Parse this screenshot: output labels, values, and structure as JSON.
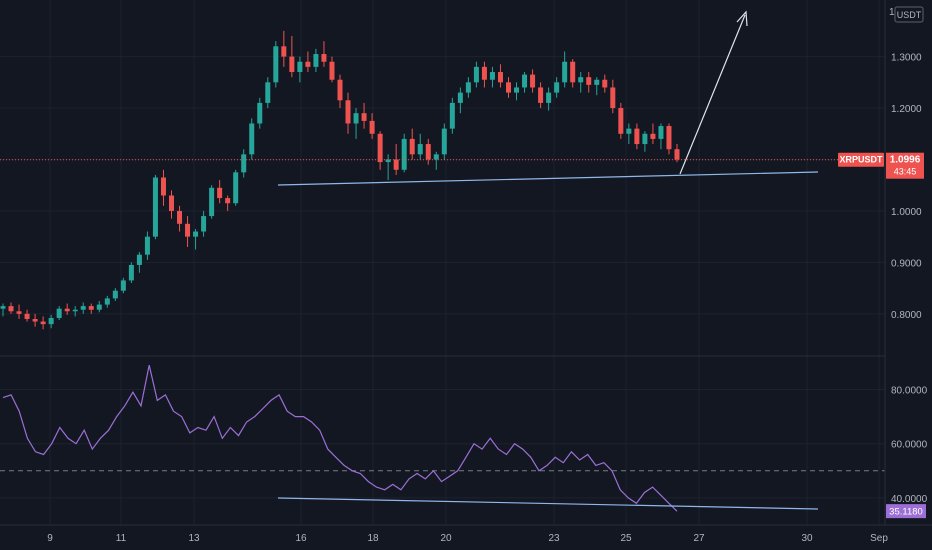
{
  "colors": {
    "background": "#131722",
    "grid": "#1e222d",
    "axis_text": "#b2b5be",
    "up": "#26a69a",
    "down": "#ef5350",
    "rsi": "#9c6fd6",
    "trendline": "#8fb8e8",
    "arrow": "#e0e3eb",
    "price_line": "#ef5350"
  },
  "price_axis": {
    "unit": "USDT",
    "ticks": [
      "1.3000",
      "1.2000",
      "1.0000",
      "0.9000",
      "0.8000"
    ],
    "top_label": "1"
  },
  "last_price": {
    "symbol": "XRPUSDT",
    "price": "1.0996",
    "countdown": "43:45",
    "value": 1.0996
  },
  "rsi_axis": {
    "ticks": [
      "80.0000",
      "60.0000",
      "40.0000"
    ],
    "level": 50,
    "current": "35.1180",
    "current_value": 35.118
  },
  "time_axis": {
    "labels": [
      "9",
      "11",
      "13",
      "16",
      "18",
      "20",
      "23",
      "25",
      "27",
      "30",
      "Sep"
    ]
  },
  "chart_data": [
    {
      "type": "candlestick",
      "series": "XRPUSDT",
      "ylim": [
        0.72,
        1.41
      ],
      "candles": [
        [
          0.81,
          0.82,
          0.795,
          0.815
        ],
        [
          0.815,
          0.822,
          0.8,
          0.805
        ],
        [
          0.805,
          0.818,
          0.79,
          0.8
        ],
        [
          0.8,
          0.808,
          0.785,
          0.79
        ],
        [
          0.79,
          0.8,
          0.775,
          0.785
        ],
        [
          0.785,
          0.795,
          0.77,
          0.78
        ],
        [
          0.78,
          0.798,
          0.772,
          0.792
        ],
        [
          0.792,
          0.815,
          0.788,
          0.81
        ],
        [
          0.81,
          0.82,
          0.798,
          0.805
        ],
        [
          0.805,
          0.815,
          0.795,
          0.808
        ],
        [
          0.808,
          0.822,
          0.8,
          0.815
        ],
        [
          0.815,
          0.82,
          0.8,
          0.808
        ],
        [
          0.808,
          0.825,
          0.803,
          0.818
        ],
        [
          0.818,
          0.835,
          0.812,
          0.83
        ],
        [
          0.83,
          0.85,
          0.825,
          0.845
        ],
        [
          0.845,
          0.87,
          0.84,
          0.865
        ],
        [
          0.865,
          0.9,
          0.86,
          0.895
        ],
        [
          0.895,
          0.92,
          0.88,
          0.915
        ],
        [
          0.915,
          0.96,
          0.905,
          0.95
        ],
        [
          0.95,
          1.07,
          0.945,
          1.065
        ],
        [
          1.065,
          1.08,
          1.01,
          1.03
        ],
        [
          1.03,
          1.04,
          0.985,
          1.0
        ],
        [
          1.0,
          1.01,
          0.96,
          0.975
        ],
        [
          0.975,
          0.99,
          0.93,
          0.95
        ],
        [
          0.95,
          0.965,
          0.925,
          0.96
        ],
        [
          0.96,
          1.0,
          0.95,
          0.99
        ],
        [
          0.99,
          1.05,
          0.985,
          1.045
        ],
        [
          1.045,
          1.06,
          1.015,
          1.025
        ],
        [
          1.025,
          1.03,
          1.0,
          1.015
        ],
        [
          1.015,
          1.08,
          1.01,
          1.075
        ],
        [
          1.075,
          1.12,
          1.065,
          1.11
        ],
        [
          1.11,
          1.18,
          1.1,
          1.17
        ],
        [
          1.17,
          1.22,
          1.16,
          1.21
        ],
        [
          1.21,
          1.26,
          1.2,
          1.25
        ],
        [
          1.25,
          1.33,
          1.24,
          1.32
        ],
        [
          1.32,
          1.35,
          1.28,
          1.3
        ],
        [
          1.3,
          1.34,
          1.26,
          1.27
        ],
        [
          1.27,
          1.3,
          1.25,
          1.29
        ],
        [
          1.29,
          1.31,
          1.27,
          1.28
        ],
        [
          1.28,
          1.315,
          1.27,
          1.305
        ],
        [
          1.305,
          1.33,
          1.28,
          1.29
        ],
        [
          1.29,
          1.3,
          1.25,
          1.255
        ],
        [
          1.255,
          1.265,
          1.2,
          1.215
        ],
        [
          1.215,
          1.23,
          1.15,
          1.17
        ],
        [
          1.17,
          1.2,
          1.14,
          1.19
        ],
        [
          1.19,
          1.21,
          1.16,
          1.175
        ],
        [
          1.175,
          1.19,
          1.14,
          1.15
        ],
        [
          1.15,
          1.155,
          1.08,
          1.095
        ],
        [
          1.095,
          1.11,
          1.06,
          1.1
        ],
        [
          1.1,
          1.13,
          1.07,
          1.08
        ],
        [
          1.08,
          1.15,
          1.075,
          1.14
        ],
        [
          1.14,
          1.16,
          1.1,
          1.11
        ],
        [
          1.11,
          1.15,
          1.1,
          1.13
        ],
        [
          1.13,
          1.14,
          1.09,
          1.1
        ],
        [
          1.1,
          1.115,
          1.08,
          1.11
        ],
        [
          1.11,
          1.17,
          1.1,
          1.16
        ],
        [
          1.16,
          1.22,
          1.15,
          1.21
        ],
        [
          1.21,
          1.24,
          1.19,
          1.23
        ],
        [
          1.23,
          1.26,
          1.22,
          1.25
        ],
        [
          1.25,
          1.29,
          1.24,
          1.28
        ],
        [
          1.28,
          1.29,
          1.24,
          1.255
        ],
        [
          1.255,
          1.28,
          1.24,
          1.27
        ],
        [
          1.27,
          1.285,
          1.24,
          1.25
        ],
        [
          1.25,
          1.26,
          1.22,
          1.23
        ],
        [
          1.23,
          1.25,
          1.215,
          1.24
        ],
        [
          1.24,
          1.27,
          1.23,
          1.265
        ],
        [
          1.265,
          1.275,
          1.23,
          1.24
        ],
        [
          1.24,
          1.25,
          1.2,
          1.21
        ],
        [
          1.21,
          1.24,
          1.195,
          1.23
        ],
        [
          1.23,
          1.26,
          1.22,
          1.25
        ],
        [
          1.25,
          1.31,
          1.24,
          1.29
        ],
        [
          1.29,
          1.295,
          1.24,
          1.25
        ],
        [
          1.25,
          1.27,
          1.23,
          1.26
        ],
        [
          1.26,
          1.27,
          1.23,
          1.245
        ],
        [
          1.245,
          1.26,
          1.225,
          1.255
        ],
        [
          1.255,
          1.265,
          1.23,
          1.24
        ],
        [
          1.24,
          1.255,
          1.19,
          1.2
        ],
        [
          1.2,
          1.21,
          1.14,
          1.15
        ],
        [
          1.15,
          1.17,
          1.13,
          1.16
        ],
        [
          1.16,
          1.17,
          1.12,
          1.13
        ],
        [
          1.13,
          1.155,
          1.115,
          1.15
        ],
        [
          1.15,
          1.17,
          1.13,
          1.14
        ],
        [
          1.14,
          1.17,
          1.12,
          1.165
        ],
        [
          1.165,
          1.17,
          1.11,
          1.12
        ],
        [
          1.12,
          1.13,
          1.095,
          1.1
        ]
      ]
    },
    {
      "type": "line",
      "series": "RSI",
      "ylim": [
        30,
        92
      ],
      "values": [
        77,
        78,
        72,
        62,
        57,
        56,
        60,
        66,
        62,
        60,
        65,
        58,
        62,
        65,
        70,
        74,
        79,
        74,
        89,
        76,
        78,
        72,
        70,
        64,
        66,
        65,
        70,
        62,
        66,
        63,
        68,
        70,
        73,
        76,
        78,
        72,
        70,
        70,
        68,
        65,
        58,
        55,
        52,
        50,
        49,
        46,
        44,
        43,
        45,
        43,
        47,
        49,
        47,
        50,
        46,
        48,
        50,
        55,
        60,
        58,
        62,
        58,
        56,
        60,
        58,
        55,
        50,
        52,
        55,
        53,
        57,
        54,
        56,
        52,
        53,
        50,
        43,
        40,
        38,
        42,
        44,
        41,
        38,
        35.1
      ]
    }
  ]
}
